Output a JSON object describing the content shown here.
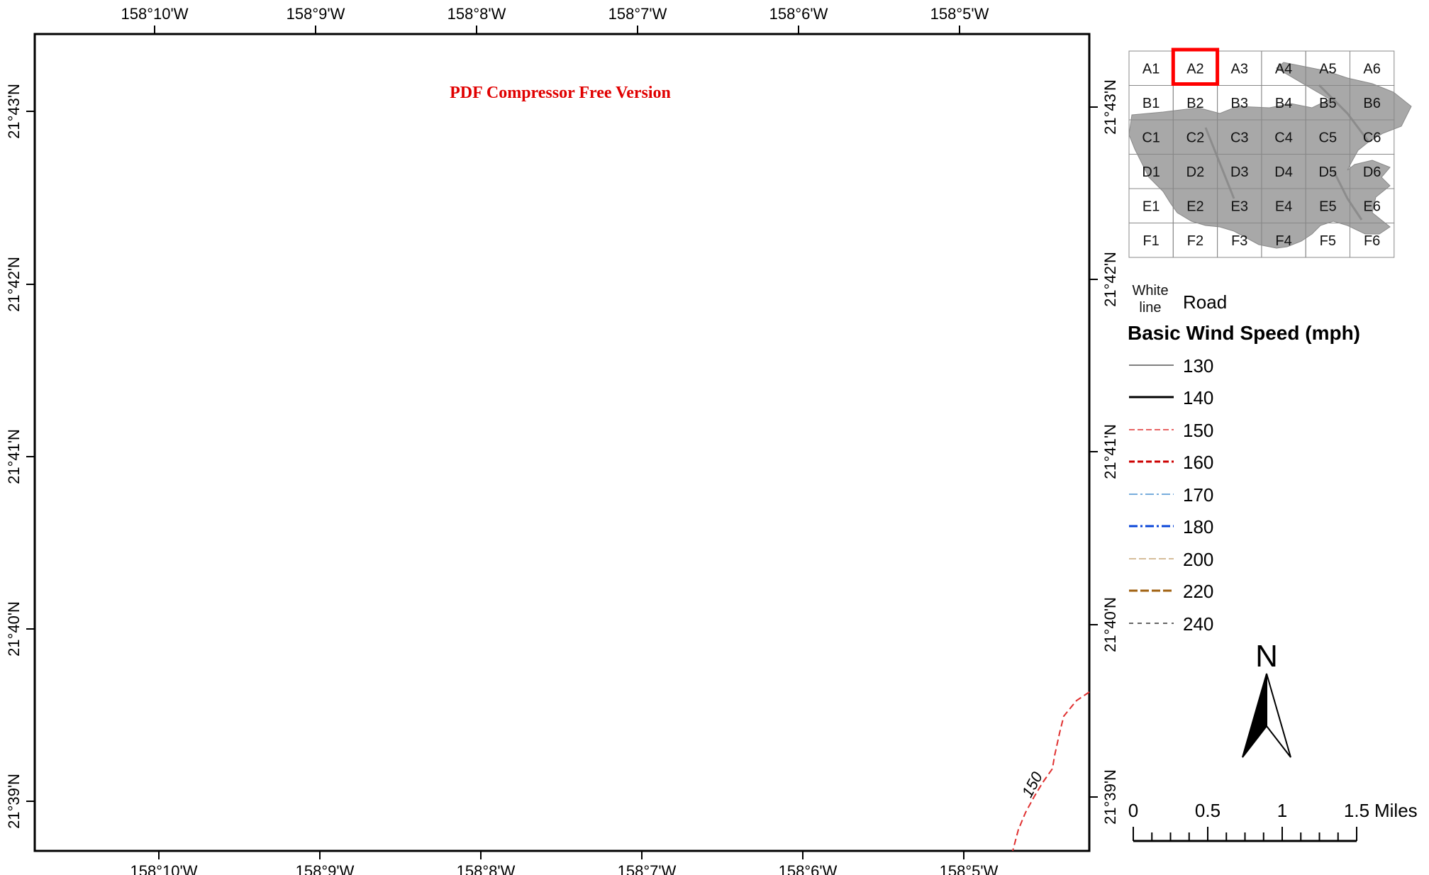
{
  "watermark": "PDF Compressor Free Version",
  "lon_ticks_top": [
    "158°10'W",
    "158°9'W",
    "158°8'W",
    "158°7'W",
    "158°6'W",
    "158°5'W"
  ],
  "lon_ticks_bottom": [
    "158°10'W",
    "158°9'W",
    "158°8'W",
    "158°7'W",
    "158°6'W",
    "158°5'W"
  ],
  "lat_ticks_left": [
    "21°43'N",
    "21°42'N",
    "21°41'N",
    "21°40'N",
    "21°39'N"
  ],
  "lat_ticks_right": [
    "21°43'N",
    "21°42'N",
    "21°41'N",
    "21°40'N",
    "21°39'N"
  ],
  "contour_label": "150",
  "index_grid": {
    "rows": [
      [
        "A1",
        "A2",
        "A3",
        "A4",
        "A5",
        "A6"
      ],
      [
        "B1",
        "B2",
        "B3",
        "B4",
        "B5",
        "B6"
      ],
      [
        "C1",
        "C2",
        "C3",
        "C4",
        "C5",
        "C6"
      ],
      [
        "D1",
        "D2",
        "D3",
        "D4",
        "D5",
        "D6"
      ],
      [
        "E1",
        "E2",
        "E3",
        "E4",
        "E5",
        "E6"
      ],
      [
        "F1",
        "F2",
        "F3",
        "F4",
        "F5",
        "F6"
      ]
    ],
    "highlighted": "A2",
    "highlight_color": "#ff0000"
  },
  "legend": {
    "white_line_line1": "White",
    "white_line_line2": "line",
    "road_label": "Road",
    "title": "Basic Wind Speed (mph)",
    "items": [
      {
        "label": "130",
        "color": "#000000"
      },
      {
        "label": "140",
        "color": "#000000"
      },
      {
        "label": "150",
        "color": "#e03030"
      },
      {
        "label": "160",
        "color": "#cc0000"
      },
      {
        "label": "170",
        "color": "#4a90d0"
      },
      {
        "label": "180",
        "color": "#0a46d8"
      },
      {
        "label": "200",
        "color": "#c8a878"
      },
      {
        "label": "220",
        "color": "#a06010"
      },
      {
        "label": "240",
        "color": "#333333"
      }
    ]
  },
  "north_arrow": "N",
  "scale_bar": {
    "labels": [
      "0",
      "0.5",
      "1",
      "1.5"
    ],
    "unit": "Miles"
  }
}
